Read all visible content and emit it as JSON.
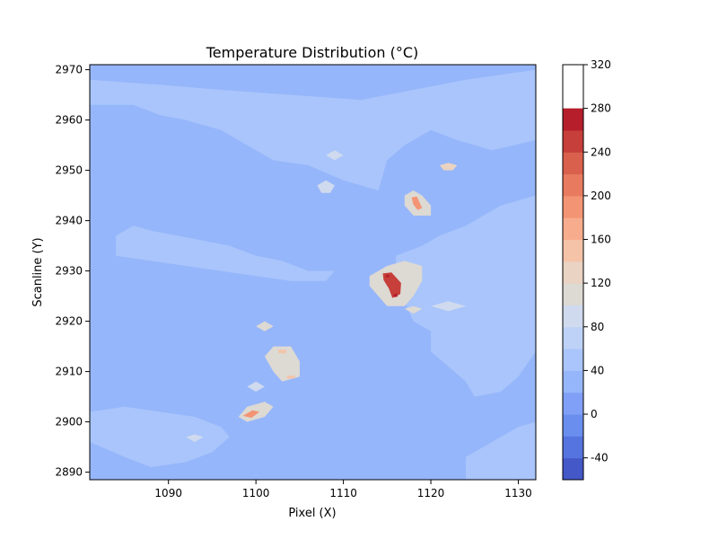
{
  "chart_data": {
    "type": "heatmap",
    "title": "Temperature Distribution (°C)",
    "xlabel": "Pixel (X)",
    "ylabel": "Scanline (Y)",
    "xlim": [
      1081,
      1132
    ],
    "ylim": [
      2888.5,
      2971
    ],
    "x_ticks": [
      1090,
      1100,
      1110,
      1120,
      1130
    ],
    "y_ticks": [
      2890,
      2900,
      2910,
      2920,
      2930,
      2940,
      2950,
      2960,
      2970
    ],
    "colorbar": {
      "min": -60,
      "max": 320,
      "levels": [
        -60,
        -40,
        -20,
        0,
        20,
        40,
        60,
        80,
        100,
        120,
        140,
        160,
        180,
        200,
        220,
        240,
        260,
        280,
        300,
        320
      ],
      "tick_labels": [
        "-40",
        "0",
        "40",
        "80",
        "120",
        "160",
        "200",
        "240",
        "280",
        "320"
      ],
      "colors": [
        "#4458c8",
        "#5674df",
        "#6a8eee",
        "#809ff6",
        "#96b6fb",
        "#a9c5fb",
        "#bdd2f6",
        "#cfdaee",
        "#ddd9d3",
        "#ead3c2",
        "#f4c3a8",
        "#f6ac8d",
        "#f39474",
        "#e87a5f",
        "#d8604d",
        "#c63f3a",
        "#b61e2c"
      ]
    },
    "background_level_c": 35,
    "regions": [
      {
        "name": "cool upper band",
        "level_c": 55,
        "poly": [
          [
            1081,
            2968
          ],
          [
            1089,
            2967
          ],
          [
            1096,
            2966
          ],
          [
            1104,
            2965
          ],
          [
            1112,
            2964
          ],
          [
            1118,
            2966
          ],
          [
            1124,
            2968
          ],
          [
            1128,
            2969
          ],
          [
            1132,
            2970
          ],
          [
            1132,
            2956
          ],
          [
            1127,
            2954
          ],
          [
            1123,
            2956
          ],
          [
            1120,
            2958
          ],
          [
            1117,
            2955
          ],
          [
            1115,
            2952
          ],
          [
            1114,
            2946
          ],
          [
            1110,
            2948
          ],
          [
            1106,
            2951
          ],
          [
            1102,
            2952
          ],
          [
            1099,
            2955
          ],
          [
            1096,
            2958
          ],
          [
            1092,
            2960
          ],
          [
            1089,
            2961
          ],
          [
            1086,
            2963
          ],
          [
            1081,
            2963
          ]
        ]
      },
      {
        "name": "cool lower right band",
        "level_c": 55,
        "poly": [
          [
            1116,
            2933
          ],
          [
            1119,
            2935
          ],
          [
            1121,
            2937
          ],
          [
            1124,
            2939
          ],
          [
            1126,
            2941
          ],
          [
            1128,
            2943
          ],
          [
            1132,
            2945
          ],
          [
            1132,
            2914
          ],
          [
            1130,
            2909
          ],
          [
            1128,
            2906
          ],
          [
            1125,
            2905
          ],
          [
            1124,
            2908
          ],
          [
            1122,
            2911
          ],
          [
            1120,
            2914
          ],
          [
            1120,
            2918
          ],
          [
            1118,
            2920
          ],
          [
            1117,
            2924
          ],
          [
            1116,
            2928
          ]
        ]
      },
      {
        "name": "cool left band",
        "level_c": 55,
        "poly": [
          [
            1084,
            2937
          ],
          [
            1086,
            2939
          ],
          [
            1088,
            2938
          ],
          [
            1091,
            2937
          ],
          [
            1094,
            2936
          ],
          [
            1097,
            2935
          ],
          [
            1100,
            2933
          ],
          [
            1103,
            2932
          ],
          [
            1106,
            2930
          ],
          [
            1109,
            2930
          ],
          [
            1108,
            2928
          ],
          [
            1104,
            2928
          ],
          [
            1100,
            2929
          ],
          [
            1096,
            2930
          ],
          [
            1092,
            2931
          ],
          [
            1088,
            2932
          ],
          [
            1084,
            2933
          ]
        ]
      },
      {
        "name": "cool left lower band",
        "level_c": 55,
        "poly": [
          [
            1081,
            2902
          ],
          [
            1085,
            2903
          ],
          [
            1089,
            2902
          ],
          [
            1093,
            2901
          ],
          [
            1096,
            2899
          ],
          [
            1097,
            2897
          ],
          [
            1095,
            2894
          ],
          [
            1092,
            2892
          ],
          [
            1088,
            2891
          ],
          [
            1085,
            2893
          ],
          [
            1081,
            2896
          ]
        ]
      },
      {
        "name": "cool lower right corner",
        "level_c": 55,
        "poly": [
          [
            1124,
            2888.5
          ],
          [
            1124,
            2893
          ],
          [
            1127,
            2896
          ],
          [
            1130,
            2899
          ],
          [
            1132,
            2900
          ],
          [
            1132,
            2888.5
          ]
        ]
      },
      {
        "name": "hot cluster 1 outer",
        "level_c": 110,
        "poly": [
          [
            1113,
            2929
          ],
          [
            1115,
            2931
          ],
          [
            1117,
            2932
          ],
          [
            1119,
            2931
          ],
          [
            1119,
            2928
          ],
          [
            1118,
            2925
          ],
          [
            1117,
            2923
          ],
          [
            1115,
            2923
          ],
          [
            1114,
            2925
          ],
          [
            1113,
            2927
          ]
        ]
      },
      {
        "name": "hot cluster 1 core",
        "level_c": 240,
        "poly": [
          [
            1114.5,
            2929.5
          ],
          [
            1115.5,
            2929.7
          ],
          [
            1116.6,
            2927.6
          ],
          [
            1116.5,
            2925.4
          ],
          [
            1115.6,
            2924.6
          ],
          [
            1115.2,
            2926.5
          ],
          [
            1114.6,
            2928.2
          ]
        ]
      },
      {
        "name": "hot cluster 1 peak",
        "level_c": 320,
        "poly": [
          [
            1114.8,
            2929.1
          ],
          [
            1115.2,
            2929.3
          ],
          [
            1115.3,
            2928.8
          ],
          [
            1114.9,
            2928.7
          ]
        ]
      },
      {
        "name": "hot cluster 1 peak 2",
        "level_c": 320,
        "poly": [
          [
            1115.7,
            2925.3
          ],
          [
            1116.1,
            2925.5
          ],
          [
            1116.2,
            2924.9
          ],
          [
            1115.8,
            2924.8
          ]
        ]
      },
      {
        "name": "hot cluster 2 outer",
        "level_c": 100,
        "poly": [
          [
            1117,
            2945
          ],
          [
            1118,
            2946
          ],
          [
            1119,
            2945
          ],
          [
            1120,
            2943
          ],
          [
            1120,
            2941
          ],
          [
            1118,
            2941
          ],
          [
            1117,
            2943
          ]
        ]
      },
      {
        "name": "hot cluster 2 core",
        "level_c": 180,
        "poly": [
          [
            1117.8,
            2944.6
          ],
          [
            1118.4,
            2944.8
          ],
          [
            1119.0,
            2942.5
          ],
          [
            1118.5,
            2942.1
          ],
          [
            1118.0,
            2943.2
          ]
        ]
      },
      {
        "name": "hot cluster 3 outer",
        "level_c": 110,
        "poly": [
          [
            1098,
            2901
          ],
          [
            1099,
            2903
          ],
          [
            1101,
            2904
          ],
          [
            1102,
            2903
          ],
          [
            1101,
            2901
          ],
          [
            1099,
            2900
          ]
        ]
      },
      {
        "name": "hot cluster 3 core",
        "level_c": 190,
        "poly": [
          [
            1098.5,
            2901.2
          ],
          [
            1099.6,
            2902.3
          ],
          [
            1100.4,
            2902.0
          ],
          [
            1099.5,
            2900.8
          ]
        ]
      },
      {
        "name": "warm patch",
        "level_c": 110,
        "poly": [
          [
            1102,
            2915
          ],
          [
            1104,
            2915
          ],
          [
            1105,
            2912
          ],
          [
            1105,
            2909
          ],
          [
            1103,
            2908
          ],
          [
            1102,
            2910
          ],
          [
            1101,
            2913
          ]
        ]
      },
      {
        "name": "warm patch core",
        "level_c": 150,
        "poly": [
          [
            1102.5,
            2914.3
          ],
          [
            1103.5,
            2914.3
          ],
          [
            1103.4,
            2913.6
          ],
          [
            1102.6,
            2913.7
          ]
        ]
      },
      {
        "name": "warm patch core 2",
        "level_c": 150,
        "poly": [
          [
            1103.5,
            2909.2
          ],
          [
            1104.5,
            2909.2
          ],
          [
            1104.4,
            2908.6
          ],
          [
            1103.6,
            2908.6
          ]
        ]
      },
      {
        "name": "warm spot 2950",
        "level_c": 120,
        "poly": [
          [
            1121,
            2951
          ],
          [
            1122,
            2951.5
          ],
          [
            1123,
            2951
          ],
          [
            1122.5,
            2950
          ],
          [
            1121.5,
            2950
          ]
        ]
      },
      {
        "name": "warm spot 2946",
        "level_c": 90,
        "poly": [
          [
            1107,
            2947
          ],
          [
            1108,
            2948
          ],
          [
            1109,
            2947
          ],
          [
            1108.5,
            2945.5
          ],
          [
            1107.5,
            2945.5
          ]
        ]
      },
      {
        "name": "warm spot 2918",
        "level_c": 100,
        "poly": [
          [
            1100,
            2919
          ],
          [
            1101,
            2920
          ],
          [
            1102,
            2919
          ],
          [
            1101,
            2918
          ]
        ]
      },
      {
        "name": "warm spot 2922",
        "level_c": 100,
        "poly": [
          [
            1117,
            2922.5
          ],
          [
            1118,
            2923
          ],
          [
            1119,
            2922.5
          ],
          [
            1118,
            2921.5
          ]
        ]
      },
      {
        "name": "warm spot 2896",
        "level_c": 95,
        "poly": [
          [
            1092,
            2897
          ],
          [
            1093,
            2897.5
          ],
          [
            1094,
            2897
          ],
          [
            1093,
            2896
          ]
        ]
      },
      {
        "name": "warm spot 2906",
        "level_c": 90,
        "poly": [
          [
            1099,
            2907
          ],
          [
            1100,
            2908
          ],
          [
            1101,
            2907
          ],
          [
            1100,
            2906
          ]
        ]
      },
      {
        "name": "warm spot 2953",
        "level_c": 90,
        "poly": [
          [
            1108,
            2953
          ],
          [
            1109,
            2954
          ],
          [
            1110,
            2953
          ],
          [
            1109,
            2952
          ]
        ]
      },
      {
        "name": "warm spot 2922 right",
        "level_c": 85,
        "poly": [
          [
            1120,
            2923
          ],
          [
            1122,
            2924
          ],
          [
            1124,
            2923
          ],
          [
            1122,
            2922
          ]
        ]
      }
    ]
  }
}
